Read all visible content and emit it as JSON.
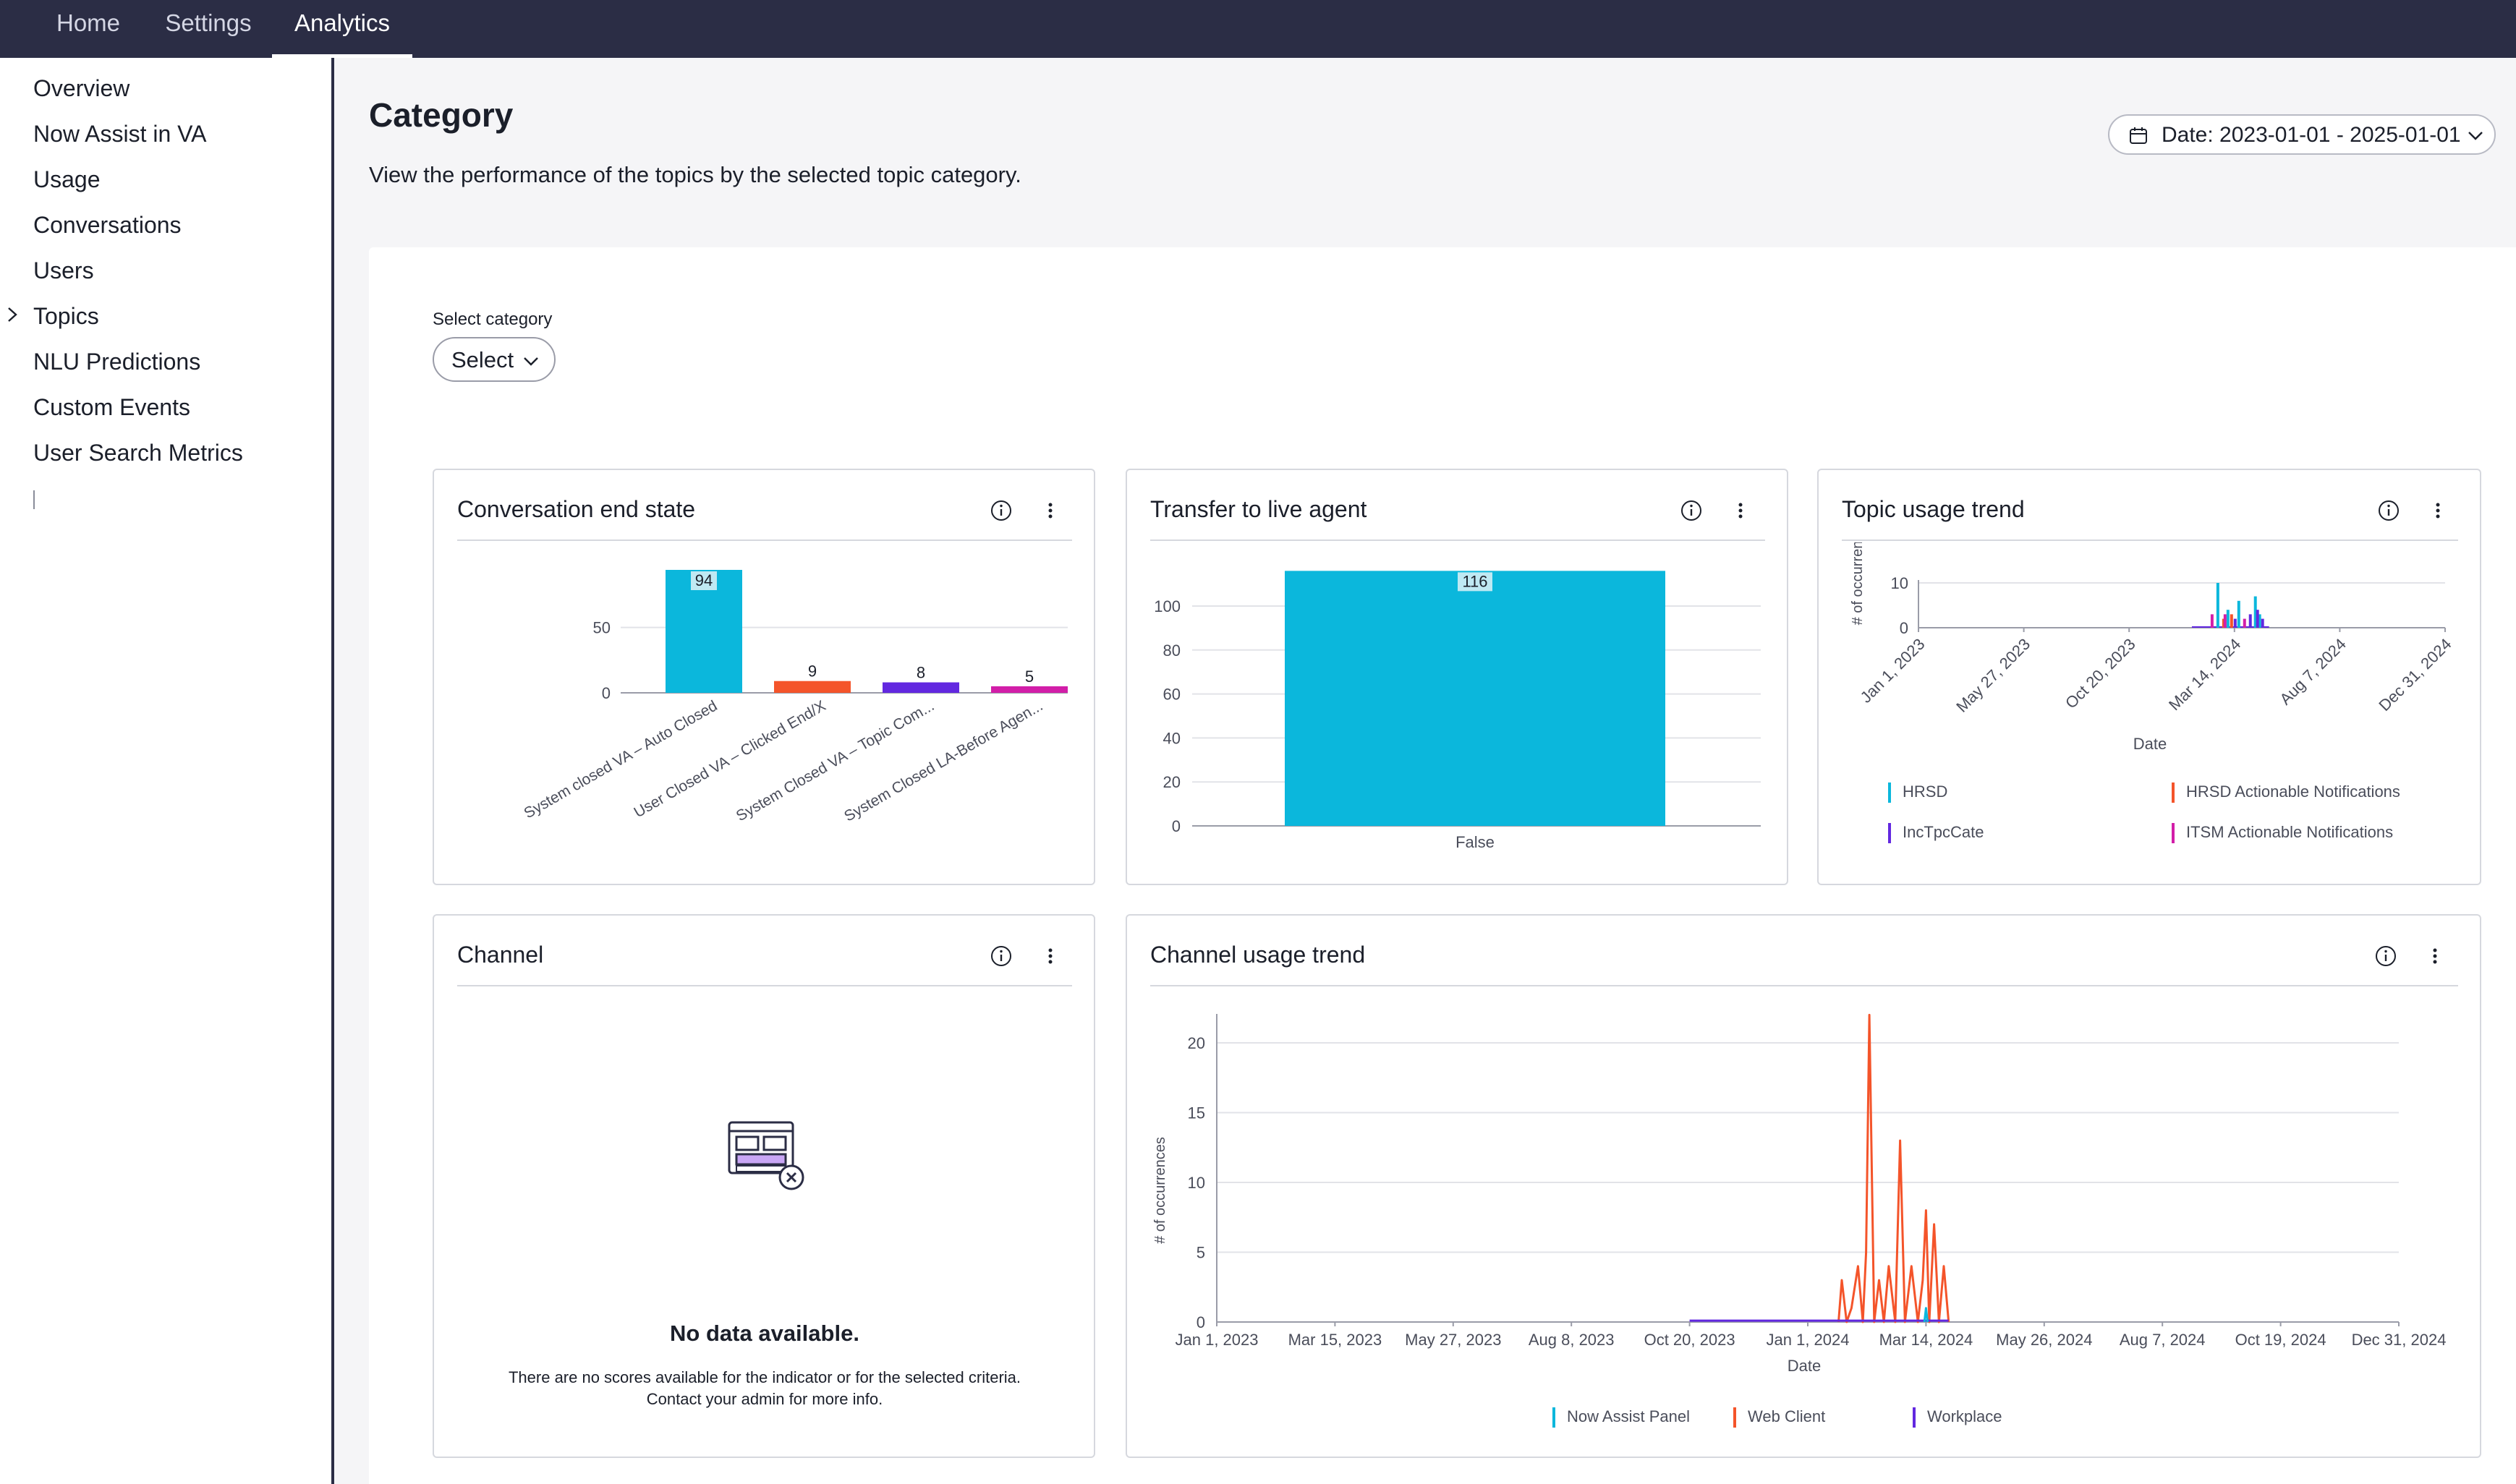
{
  "topnav": {
    "tabs": [
      {
        "label": "Home",
        "active": false
      },
      {
        "label": "Settings",
        "active": false
      },
      {
        "label": "Analytics",
        "active": true
      }
    ]
  },
  "sidebar": {
    "items": [
      {
        "label": "Overview"
      },
      {
        "label": "Now Assist in VA"
      },
      {
        "label": "Usage"
      },
      {
        "label": "Conversations"
      },
      {
        "label": "Users"
      },
      {
        "label": "Topics",
        "expandable": true
      },
      {
        "label": "NLU Predictions"
      },
      {
        "label": "Custom Events"
      },
      {
        "label": "User Search Metrics"
      }
    ]
  },
  "header": {
    "title": "Category",
    "description": "View the performance of the topics by the selected topic category.",
    "date_filter": "Date: 2023-01-01 - 2025-01-01"
  },
  "filter": {
    "label": "Select category",
    "value": "Select"
  },
  "colors": {
    "cyan": "#0bb7dc",
    "orange": "#f4542a",
    "purple": "#6228e0",
    "magenta": "#d21ea8",
    "nav_bg": "#2b2d45"
  },
  "cards": {
    "end_state": {
      "title": "Conversation end state",
      "chart_data": {
        "type": "bar",
        "categories": [
          "System closed VA – Auto Closed",
          "User Closed VA – Clicked End/X",
          "System Closed VA – Topic Com...",
          "System Closed LA-Before Agen..."
        ],
        "values": [
          94,
          9,
          8,
          5
        ],
        "colors": [
          "#0bb7dc",
          "#f4542a",
          "#6228e0",
          "#d21ea8"
        ],
        "yticks": [
          0,
          50
        ],
        "ylim": [
          0,
          100
        ]
      }
    },
    "transfer": {
      "title": "Transfer to live agent",
      "chart_data": {
        "type": "bar",
        "categories": [
          "False"
        ],
        "values": [
          116
        ],
        "colors": [
          "#0bb7dc"
        ],
        "yticks": [
          0,
          20,
          40,
          60,
          80,
          100
        ],
        "ylim": [
          0,
          116
        ]
      }
    },
    "topic_trend": {
      "title": "Topic usage trend",
      "ylabel": "# of occurren",
      "xlabel": "Date",
      "legend": [
        {
          "name": "HRSD",
          "color": "#0bb7dc"
        },
        {
          "name": "HRSD Actionable Notifications",
          "color": "#f4542a"
        },
        {
          "name": "IncTpcCate",
          "color": "#6228e0"
        },
        {
          "name": "ITSM Actionable Notifications",
          "color": "#d21ea8"
        }
      ],
      "chart_data": {
        "type": "bar",
        "x_ticks": [
          "Jan 1, 2023",
          "May 27, 2023",
          "Oct 20, 2023",
          "Mar 14, 2024",
          "Aug 7, 2024",
          "Dec 31, 2024"
        ],
        "yticks": [
          0,
          10
        ],
        "ylim": [
          0,
          10
        ],
        "x_range": [
          "2023-01-01",
          "2024-12-31"
        ],
        "series": [
          {
            "name": "HRSD",
            "points": [
              [
                "2024-02-20",
                10
              ],
              [
                "2024-03-05",
                4
              ],
              [
                "2024-03-20",
                6
              ],
              [
                "2024-04-12",
                7
              ],
              [
                "2024-04-18",
                3
              ]
            ]
          },
          {
            "name": "HRSD Actionable Notifications",
            "points": [
              [
                "2024-02-28",
                2
              ],
              [
                "2024-03-10",
                3
              ]
            ]
          },
          {
            "name": "IncTpcCate",
            "points": [
              [
                "2024-03-15",
                2
              ],
              [
                "2024-04-05",
                3
              ],
              [
                "2024-04-15",
                4
              ],
              [
                "2024-04-22",
                2
              ]
            ]
          },
          {
            "name": "ITSM Actionable Notifications",
            "points": [
              [
                "2024-02-12",
                3
              ],
              [
                "2024-03-01",
                3
              ],
              [
                "2024-03-28",
                2
              ]
            ]
          }
        ]
      }
    },
    "channel": {
      "title": "Channel",
      "empty_title": "No data available.",
      "empty_line1": "There are no scores available for the indicator or for the selected criteria.",
      "empty_line2": "Contact your admin for more info."
    },
    "channel_trend": {
      "title": "Channel usage trend",
      "ylabel": "# of occurrences",
      "xlabel": "Date",
      "legend": [
        {
          "name": "Now Assist Panel",
          "color": "#0bb7dc"
        },
        {
          "name": "Web Client",
          "color": "#f4542a"
        },
        {
          "name": "Workplace",
          "color": "#6228e0"
        }
      ],
      "chart_data": {
        "type": "line",
        "x_ticks": [
          "Jan 1, 2023",
          "Mar 15, 2023",
          "May 27, 2023",
          "Aug 8, 2023",
          "Oct 20, 2023",
          "Jan 1, 2024",
          "Mar 14, 2024",
          "May 26, 2024",
          "Aug 7, 2024",
          "Oct 19, 2024",
          "Dec 31, 2024"
        ],
        "yticks": [
          0,
          5,
          10,
          15,
          20
        ],
        "ylim": [
          0,
          22
        ],
        "x_range": [
          "2023-01-01",
          "2024-12-31"
        ],
        "series": [
          {
            "name": "Web Client",
            "points": [
              [
                "2024-01-20",
                0
              ],
              [
                "2024-01-22",
                3
              ],
              [
                "2024-01-25",
                0
              ],
              [
                "2024-01-28",
                1
              ],
              [
                "2024-02-01",
                4
              ],
              [
                "2024-02-04",
                0
              ],
              [
                "2024-02-06",
                5
              ],
              [
                "2024-02-08",
                22
              ],
              [
                "2024-02-11",
                0
              ],
              [
                "2024-02-14",
                3
              ],
              [
                "2024-02-17",
                0
              ],
              [
                "2024-02-20",
                4
              ],
              [
                "2024-02-24",
                0
              ],
              [
                "2024-02-27",
                13
              ],
              [
                "2024-03-01",
                0
              ],
              [
                "2024-03-05",
                4
              ],
              [
                "2024-03-09",
                0
              ],
              [
                "2024-03-12",
                3
              ],
              [
                "2024-03-14",
                8
              ],
              [
                "2024-03-16",
                0
              ],
              [
                "2024-03-19",
                7
              ],
              [
                "2024-03-22",
                0
              ],
              [
                "2024-03-25",
                4
              ],
              [
                "2024-03-28",
                0
              ]
            ]
          },
          {
            "name": "Workplace",
            "points": [
              [
                "2023-10-20",
                0.1
              ],
              [
                "2024-03-28",
                0.1
              ]
            ]
          },
          {
            "name": "Now Assist Panel",
            "points": [
              [
                "2024-03-13",
                0
              ],
              [
                "2024-03-14",
                1
              ],
              [
                "2024-03-15",
                0
              ]
            ]
          }
        ]
      }
    }
  }
}
